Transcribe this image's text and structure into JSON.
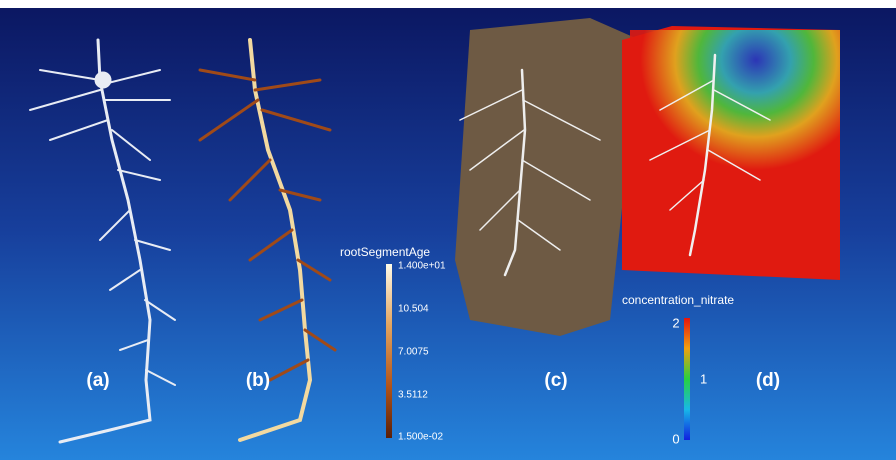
{
  "panels": [
    {
      "label": "(a)"
    },
    {
      "label": "(b)"
    },
    {
      "label": "(c)"
    },
    {
      "label": "(d)"
    }
  ],
  "colorbars": [
    {
      "title": "rootSegmentAge",
      "tick_labels": [
        "1.400e+01",
        "10.504",
        "7.0075",
        "3.5112",
        "1.500e-02"
      ]
    },
    {
      "title": "concentration_nitrate",
      "tick_labels": [
        "2",
        "1",
        "0"
      ]
    }
  ]
}
